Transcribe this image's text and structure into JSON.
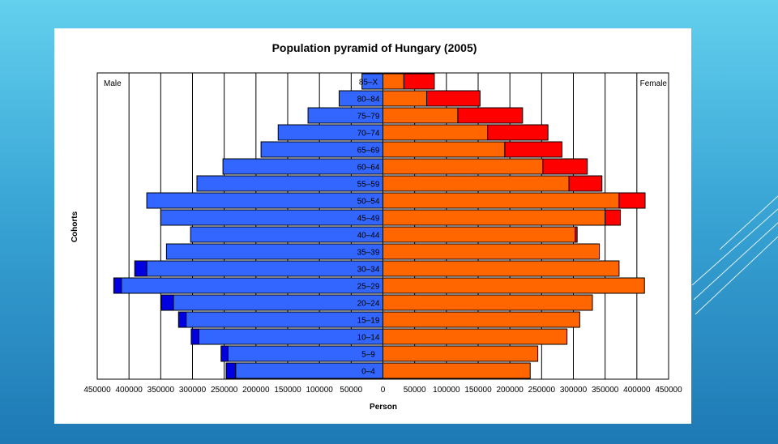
{
  "chart_data": {
    "type": "bar",
    "orientation": "horizontal-pyramid",
    "title": "Population pyramid of Hungary (2005)",
    "xlabel": "Person",
    "ylabel": "Cohorts",
    "left_corner_label": "Male",
    "right_corner_label": "Female",
    "xlim": [
      -450000,
      450000
    ],
    "x_ticks": [
      -450000,
      -400000,
      -350000,
      -300000,
      -250000,
      -200000,
      -150000,
      -100000,
      -50000,
      0,
      50000,
      100000,
      150000,
      200000,
      250000,
      300000,
      350000,
      400000,
      450000
    ],
    "x_tick_labels": [
      "450000",
      "400000",
      "350000",
      "300000",
      "250000",
      "200000",
      "150000",
      "100000",
      "50000",
      "0",
      "50000",
      "100000",
      "150000",
      "200000",
      "250000",
      "300000",
      "350000",
      "400000",
      "450000"
    ],
    "grid": "vertical lines",
    "categories": [
      "85–X",
      "80–84",
      "75–79",
      "70–74",
      "65–69",
      "60–64",
      "55–59",
      "50–54",
      "45–49",
      "40–44",
      "35–39",
      "30–34",
      "25–29",
      "20–24",
      "15–19",
      "10–14",
      "5–9",
      "0–4"
    ],
    "male": {
      "base": [
        33000,
        69000,
        118000,
        165000,
        192000,
        252000,
        293000,
        372000,
        350000,
        303000,
        341000,
        372000,
        412000,
        330000,
        310000,
        290000,
        244000,
        232000
      ],
      "surplus": [
        0,
        0,
        0,
        0,
        0,
        0,
        0,
        0,
        0,
        0,
        0,
        19000,
        12000,
        19000,
        12000,
        12000,
        11000,
        15000
      ],
      "base_color": "#3366ff",
      "surplus_color": "#0000e0"
    },
    "female": {
      "base": [
        33000,
        69000,
        118000,
        165000,
        192000,
        252000,
        293000,
        372000,
        350000,
        303000,
        341000,
        372000,
        412000,
        330000,
        310000,
        290000,
        244000,
        232000
      ],
      "surplus": [
        48000,
        84000,
        102000,
        95000,
        90000,
        70000,
        52000,
        41000,
        24000,
        3000,
        0,
        0,
        0,
        0,
        0,
        0,
        0,
        0
      ],
      "base_color": "#ff6600",
      "surplus_color": "#ff0000"
    }
  }
}
